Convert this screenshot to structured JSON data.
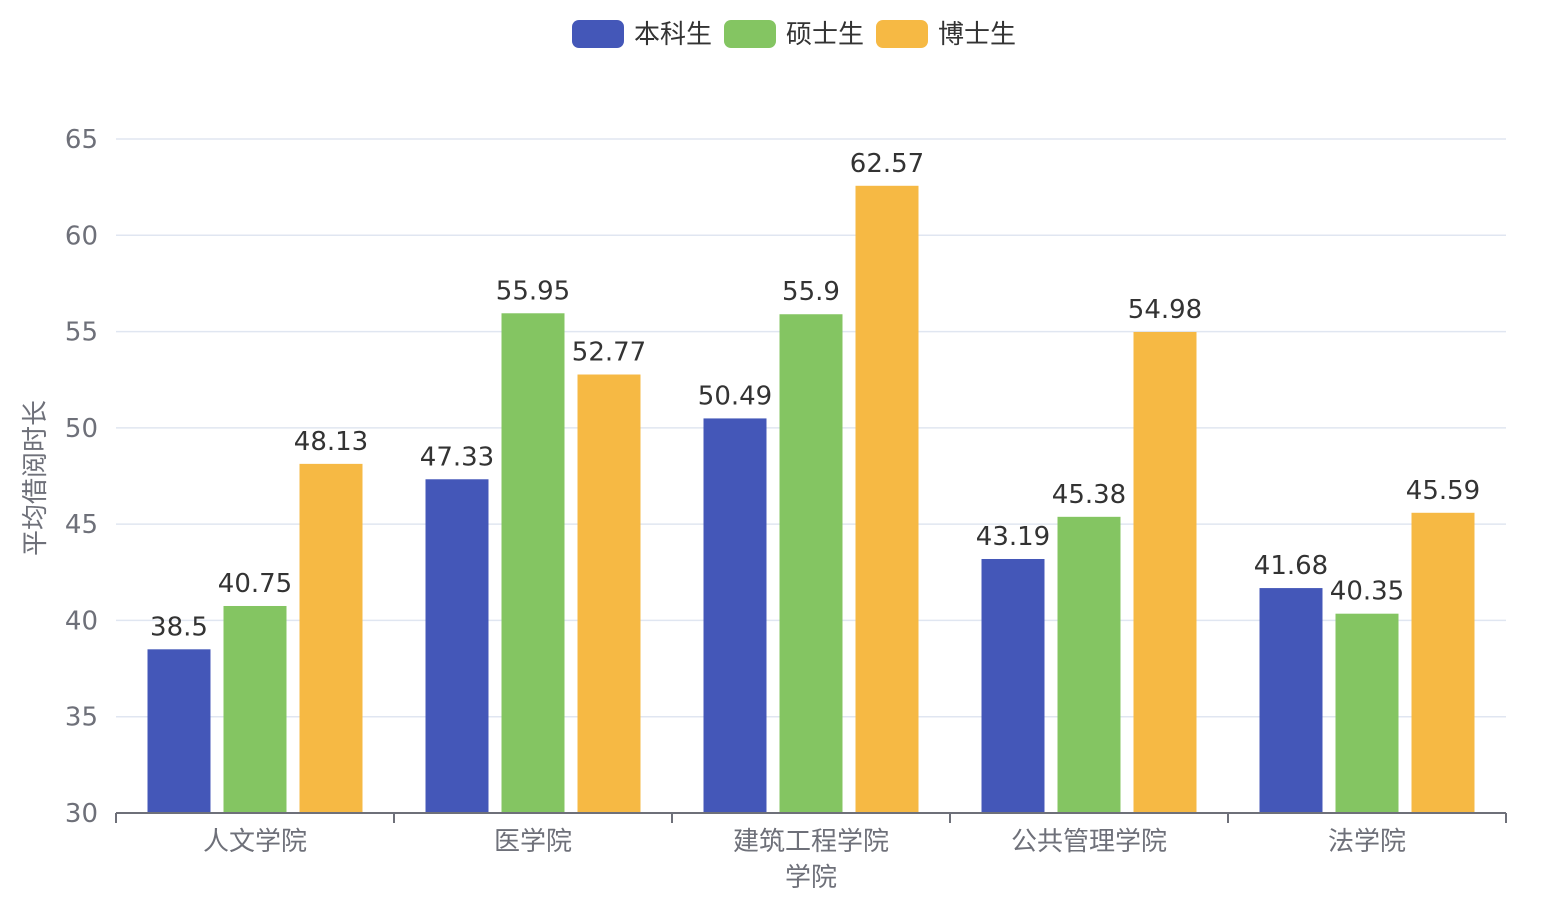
{
  "chart_data": {
    "type": "bar",
    "title": "",
    "xlabel": "学院",
    "ylabel": "平均借阅时长",
    "ylim": [
      30,
      65
    ],
    "yticks": [
      30,
      35,
      40,
      45,
      50,
      55,
      60,
      65
    ],
    "categories": [
      "人文学院",
      "医学院",
      "建筑工程学院",
      "公共管理学院",
      "法学院"
    ],
    "series": [
      {
        "name": "本科生",
        "color": "#4457b8",
        "values": [
          38.5,
          47.33,
          50.49,
          43.19,
          41.68
        ]
      },
      {
        "name": "硕士生",
        "color": "#84c562",
        "values": [
          40.75,
          55.95,
          55.9,
          45.38,
          40.35
        ]
      },
      {
        "name": "博士生",
        "color": "#f6b944",
        "values": [
          48.13,
          52.77,
          62.57,
          54.98,
          45.59
        ]
      }
    ],
    "legend_position": "top-center",
    "grid": true
  }
}
